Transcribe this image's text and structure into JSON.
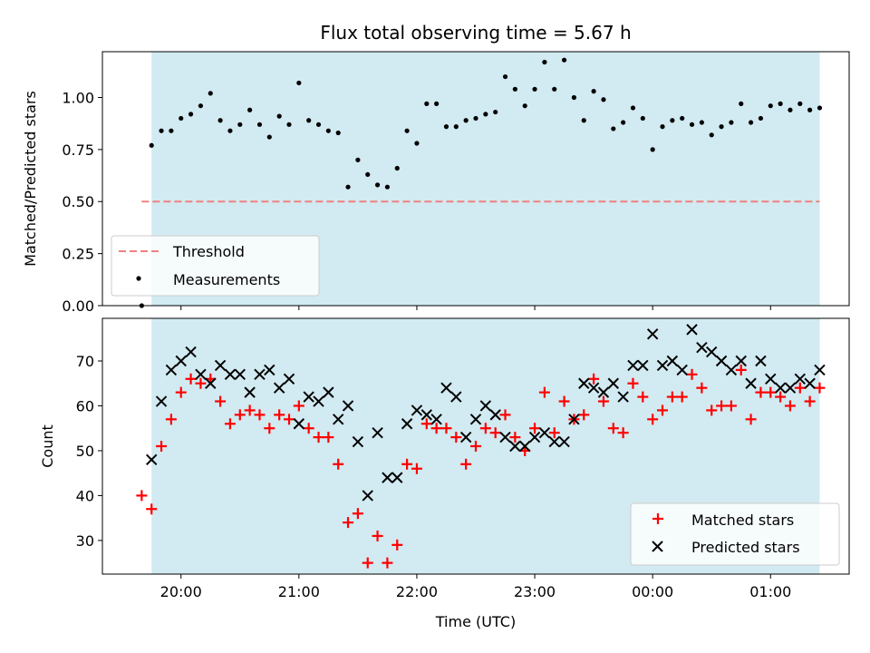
{
  "chart_data": [
    {
      "type": "scatter",
      "title": "Flux total observing time = 5.67 h",
      "xlabel": "",
      "ylabel": "Matched/Predicted stars",
      "x_axis": "time (UTC), hours",
      "xlim": [
        "19:20",
        "01:40"
      ],
      "ylim": [
        0,
        1.22
      ],
      "xticks": [
        "20:00",
        "21:00",
        "22:00",
        "23:00",
        "00:00",
        "01:00"
      ],
      "yticks": [
        "0.00",
        "0.25",
        "0.50",
        "0.75",
        "1.00"
      ],
      "observing_window": [
        "19:45",
        "01:25"
      ],
      "observing_window_color": "#add8e6",
      "threshold": {
        "name": "Threshold",
        "value": 0.5,
        "x_range": [
          "19:40",
          "01:25"
        ],
        "color": "#f08080",
        "style": "dashed"
      },
      "series": [
        {
          "name": "Measurements",
          "marker": "dot",
          "color": "#000000",
          "points": [
            [
              "19:40",
              0.0
            ],
            [
              "19:45",
              0.77
            ],
            [
              "19:50",
              0.84
            ],
            [
              "19:55",
              0.84
            ],
            [
              "20:00",
              0.9
            ],
            [
              "20:05",
              0.92
            ],
            [
              "20:10",
              0.96
            ],
            [
              "20:15",
              1.02
            ],
            [
              "20:20",
              0.89
            ],
            [
              "20:25",
              0.84
            ],
            [
              "20:30",
              0.87
            ],
            [
              "20:35",
              0.94
            ],
            [
              "20:40",
              0.87
            ],
            [
              "20:45",
              0.81
            ],
            [
              "20:50",
              0.91
            ],
            [
              "20:55",
              0.87
            ],
            [
              "21:00",
              1.07
            ],
            [
              "21:05",
              0.89
            ],
            [
              "21:10",
              0.87
            ],
            [
              "21:15",
              0.84
            ],
            [
              "21:20",
              0.83
            ],
            [
              "21:25",
              0.57
            ],
            [
              "21:30",
              0.7
            ],
            [
              "21:35",
              0.63
            ],
            [
              "21:40",
              0.58
            ],
            [
              "21:45",
              0.57
            ],
            [
              "21:50",
              0.66
            ],
            [
              "21:55",
              0.84
            ],
            [
              "22:00",
              0.78
            ],
            [
              "22:05",
              0.97
            ],
            [
              "22:10",
              0.97
            ],
            [
              "22:15",
              0.86
            ],
            [
              "22:20",
              0.86
            ],
            [
              "22:25",
              0.89
            ],
            [
              "22:30",
              0.9
            ],
            [
              "22:35",
              0.92
            ],
            [
              "22:40",
              0.93
            ],
            [
              "22:45",
              1.1
            ],
            [
              "22:50",
              1.04
            ],
            [
              "22:55",
              0.96
            ],
            [
              "23:00",
              1.04
            ],
            [
              "23:05",
              1.17
            ],
            [
              "23:10",
              1.04
            ],
            [
              "23:15",
              1.18
            ],
            [
              "23:20",
              1.0
            ],
            [
              "23:25",
              0.89
            ],
            [
              "23:30",
              1.03
            ],
            [
              "23:35",
              0.99
            ],
            [
              "23:40",
              0.85
            ],
            [
              "23:45",
              0.88
            ],
            [
              "23:50",
              0.95
            ],
            [
              "23:55",
              0.9
            ],
            [
              "00:00",
              0.75
            ],
            [
              "00:05",
              0.86
            ],
            [
              "00:10",
              0.89
            ],
            [
              "00:15",
              0.9
            ],
            [
              "00:20",
              0.87
            ],
            [
              "00:25",
              0.88
            ],
            [
              "00:30",
              0.82
            ],
            [
              "00:35",
              0.86
            ],
            [
              "00:40",
              0.88
            ],
            [
              "00:45",
              0.97
            ],
            [
              "00:50",
              0.88
            ],
            [
              "00:55",
              0.9
            ],
            [
              "01:00",
              0.96
            ],
            [
              "01:05",
              0.97
            ],
            [
              "01:10",
              0.94
            ],
            [
              "01:15",
              0.97
            ],
            [
              "01:20",
              0.94
            ],
            [
              "01:25",
              0.95
            ]
          ]
        }
      ],
      "legend": {
        "position": "lower-left",
        "entries": [
          "Threshold",
          "Measurements"
        ]
      },
      "grid": false
    },
    {
      "type": "scatter",
      "title": "",
      "xlabel": "Time (UTC)",
      "ylabel": "Count",
      "x_axis": "time (UTC), hours",
      "xlim": [
        "19:20",
        "01:40"
      ],
      "ylim": [
        22.5,
        79.5
      ],
      "xticks": [
        "20:00",
        "21:00",
        "22:00",
        "23:00",
        "00:00",
        "01:00"
      ],
      "yticks": [
        "30",
        "40",
        "50",
        "60",
        "70"
      ],
      "observing_window": [
        "19:45",
        "01:25"
      ],
      "observing_window_color": "#add8e6",
      "series": [
        {
          "name": "Matched stars",
          "marker": "plus",
          "color": "#ff0000",
          "points": [
            [
              "19:40",
              40
            ],
            [
              "19:45",
              37
            ],
            [
              "19:50",
              51
            ],
            [
              "19:55",
              57
            ],
            [
              "20:00",
              63
            ],
            [
              "20:05",
              66
            ],
            [
              "20:10",
              65
            ],
            [
              "20:15",
              66
            ],
            [
              "20:20",
              61
            ],
            [
              "20:25",
              56
            ],
            [
              "20:30",
              58
            ],
            [
              "20:35",
              59
            ],
            [
              "20:40",
              58
            ],
            [
              "20:45",
              55
            ],
            [
              "20:50",
              58
            ],
            [
              "20:55",
              57
            ],
            [
              "21:00",
              60
            ],
            [
              "21:05",
              55
            ],
            [
              "21:10",
              53
            ],
            [
              "21:15",
              53
            ],
            [
              "21:20",
              47
            ],
            [
              "21:25",
              34
            ],
            [
              "21:30",
              36
            ],
            [
              "21:35",
              25
            ],
            [
              "21:40",
              31
            ],
            [
              "21:45",
              25
            ],
            [
              "21:50",
              29
            ],
            [
              "21:55",
              47
            ],
            [
              "22:00",
              46
            ],
            [
              "22:05",
              56
            ],
            [
              "22:10",
              55
            ],
            [
              "22:15",
              55
            ],
            [
              "22:20",
              53
            ],
            [
              "22:25",
              47
            ],
            [
              "22:30",
              51
            ],
            [
              "22:35",
              55
            ],
            [
              "22:40",
              54
            ],
            [
              "22:45",
              58
            ],
            [
              "22:50",
              53
            ],
            [
              "22:55",
              50
            ],
            [
              "23:00",
              55
            ],
            [
              "23:05",
              63
            ],
            [
              "23:10",
              54
            ],
            [
              "23:15",
              61
            ],
            [
              "23:20",
              57
            ],
            [
              "23:25",
              58
            ],
            [
              "23:30",
              66
            ],
            [
              "23:35",
              61
            ],
            [
              "23:40",
              55
            ],
            [
              "23:45",
              54
            ],
            [
              "23:50",
              65
            ],
            [
              "23:55",
              62
            ],
            [
              "00:00",
              57
            ],
            [
              "00:05",
              59
            ],
            [
              "00:10",
              62
            ],
            [
              "00:15",
              62
            ],
            [
              "00:20",
              67
            ],
            [
              "00:25",
              64
            ],
            [
              "00:30",
              59
            ],
            [
              "00:35",
              60
            ],
            [
              "00:40",
              60
            ],
            [
              "00:45",
              68
            ],
            [
              "00:50",
              57
            ],
            [
              "00:55",
              63
            ],
            [
              "01:00",
              63
            ],
            [
              "01:05",
              62
            ],
            [
              "01:10",
              60
            ],
            [
              "01:15",
              64
            ],
            [
              "01:20",
              61
            ],
            [
              "01:25",
              64
            ]
          ]
        },
        {
          "name": "Predicted stars",
          "marker": "x",
          "color": "#000000",
          "points": [
            [
              "19:45",
              48
            ],
            [
              "19:50",
              61
            ],
            [
              "19:55",
              68
            ],
            [
              "20:00",
              70
            ],
            [
              "20:05",
              72
            ],
            [
              "20:10",
              67
            ],
            [
              "20:15",
              65
            ],
            [
              "20:20",
              69
            ],
            [
              "20:25",
              67
            ],
            [
              "20:30",
              67
            ],
            [
              "20:35",
              63
            ],
            [
              "20:40",
              67
            ],
            [
              "20:45",
              68
            ],
            [
              "20:50",
              64
            ],
            [
              "20:55",
              66
            ],
            [
              "21:00",
              56
            ],
            [
              "21:05",
              62
            ],
            [
              "21:10",
              61
            ],
            [
              "21:15",
              63
            ],
            [
              "21:20",
              57
            ],
            [
              "21:25",
              60
            ],
            [
              "21:30",
              52
            ],
            [
              "21:35",
              40
            ],
            [
              "21:40",
              54
            ],
            [
              "21:45",
              44
            ],
            [
              "21:50",
              44
            ],
            [
              "21:55",
              56
            ],
            [
              "22:00",
              59
            ],
            [
              "22:05",
              58
            ],
            [
              "22:10",
              57
            ],
            [
              "22:15",
              64
            ],
            [
              "22:20",
              62
            ],
            [
              "22:25",
              53
            ],
            [
              "22:30",
              57
            ],
            [
              "22:35",
              60
            ],
            [
              "22:40",
              58
            ],
            [
              "22:45",
              53
            ],
            [
              "22:50",
              51
            ],
            [
              "22:55",
              51
            ],
            [
              "23:00",
              53
            ],
            [
              "23:05",
              54
            ],
            [
              "23:10",
              52
            ],
            [
              "23:15",
              52
            ],
            [
              "23:20",
              57
            ],
            [
              "23:25",
              65
            ],
            [
              "23:30",
              64
            ],
            [
              "23:35",
              63
            ],
            [
              "23:40",
              65
            ],
            [
              "23:45",
              62
            ],
            [
              "23:50",
              69
            ],
            [
              "23:55",
              69
            ],
            [
              "00:00",
              76
            ],
            [
              "00:05",
              69
            ],
            [
              "00:10",
              70
            ],
            [
              "00:15",
              68
            ],
            [
              "00:20",
              77
            ],
            [
              "00:25",
              73
            ],
            [
              "00:30",
              72
            ],
            [
              "00:35",
              70
            ],
            [
              "00:40",
              68
            ],
            [
              "00:45",
              70
            ],
            [
              "00:50",
              65
            ],
            [
              "00:55",
              70
            ],
            [
              "01:00",
              66
            ],
            [
              "01:05",
              64
            ],
            [
              "01:10",
              64
            ],
            [
              "01:15",
              66
            ],
            [
              "01:20",
              65
            ],
            [
              "01:25",
              68
            ]
          ]
        }
      ],
      "legend": {
        "position": "lower-right",
        "entries": [
          "Matched stars",
          "Predicted stars"
        ]
      },
      "grid": false
    }
  ]
}
